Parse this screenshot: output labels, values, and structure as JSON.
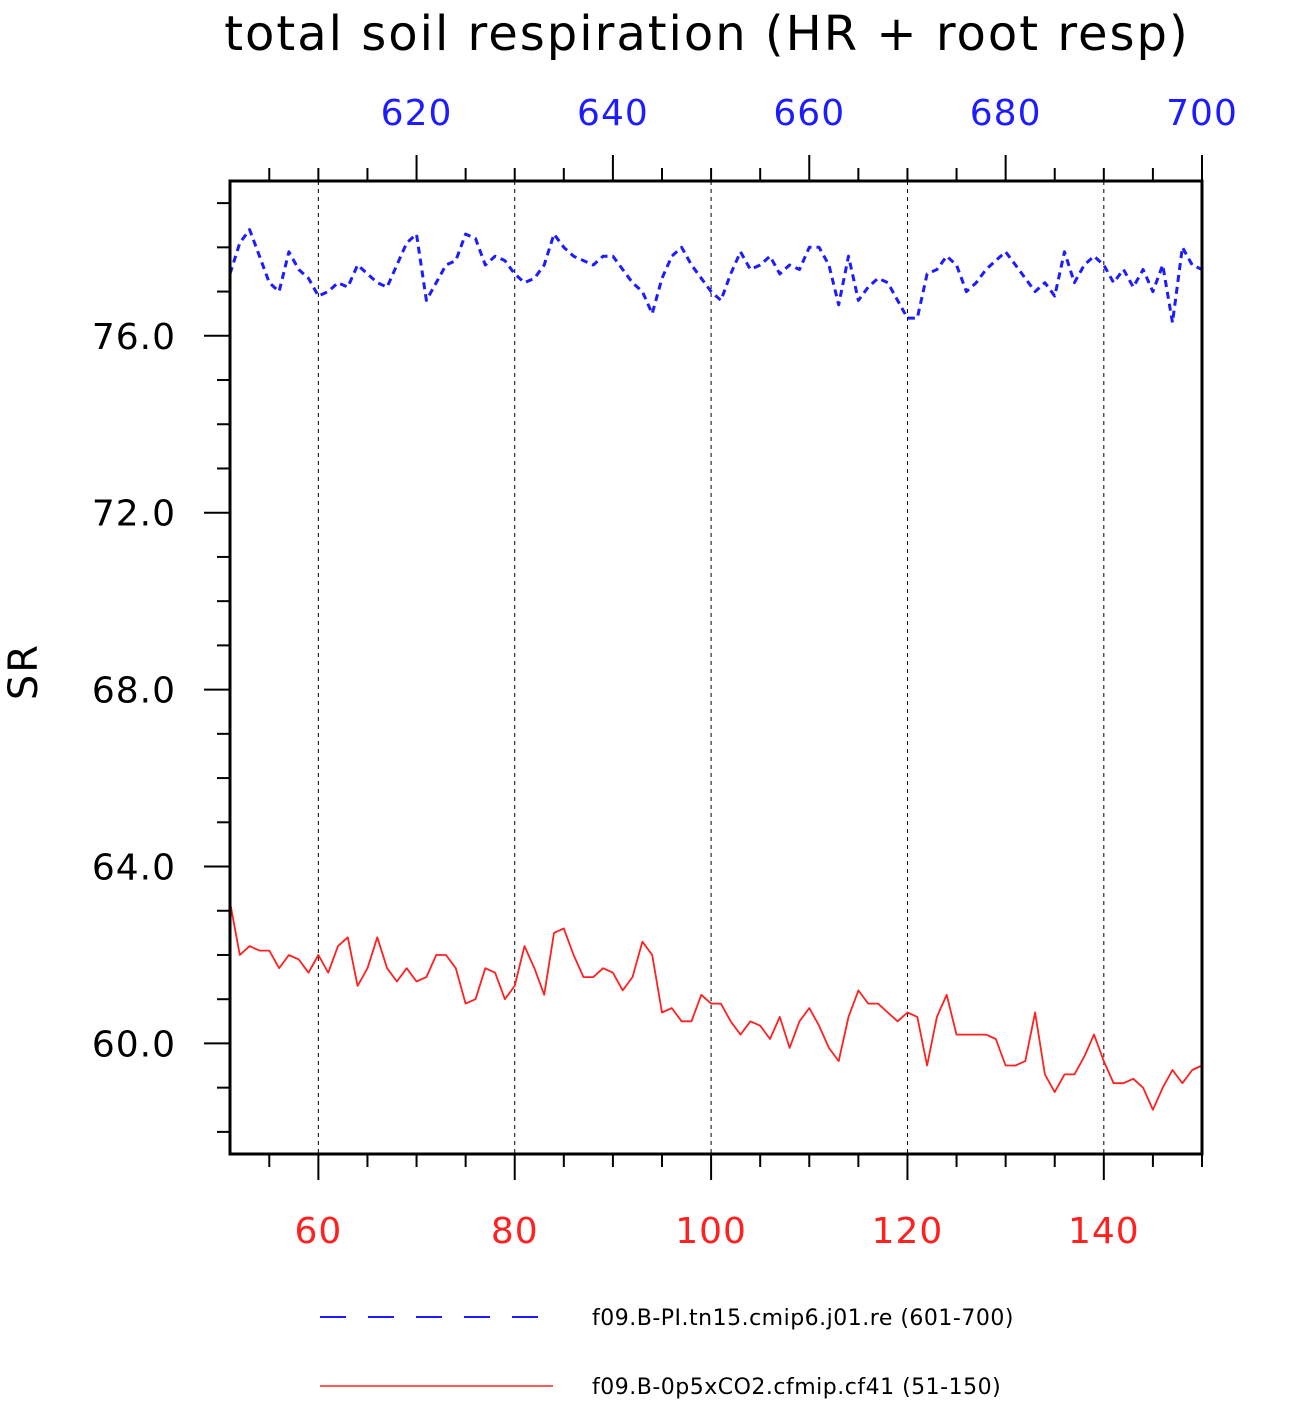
{
  "chart_data": {
    "type": "line",
    "title": "total soil respiration (HR + root resp)",
    "ylabel": "SR",
    "ylim": [
      57.5,
      79.5
    ],
    "y_ticks": [
      60,
      64,
      68,
      72,
      76
    ],
    "y_tick_labels": [
      "60.0",
      "64.0",
      "68.0",
      "72.0",
      "76.0"
    ],
    "grid": "vertical dashed",
    "legend_position": "bottom",
    "x_bottom": {
      "range": [
        51,
        150
      ],
      "ticks": [
        60,
        80,
        100,
        120,
        140
      ],
      "tick_labels": [
        "60",
        "80",
        "100",
        "120",
        "140"
      ],
      "color": "#ff2020"
    },
    "x_top": {
      "range": [
        601,
        700
      ],
      "ticks": [
        620,
        640,
        660,
        680,
        700
      ],
      "tick_labels": [
        "620",
        "640",
        "660",
        "680",
        "700"
      ],
      "color": "#1c1cff"
    },
    "series": [
      {
        "name": "f09.B-PI.tn15.cmip6.j01.re (601-700)",
        "axis": "top",
        "color": "#1c1cff",
        "style": "dashed",
        "x_start": 601,
        "values": [
          77.4,
          78.1,
          78.4,
          77.8,
          77.2,
          77.0,
          77.9,
          77.5,
          77.3,
          76.9,
          77.0,
          77.2,
          77.1,
          77.6,
          77.4,
          77.2,
          77.1,
          77.6,
          78.1,
          78.3,
          76.8,
          77.2,
          77.6,
          77.7,
          78.3,
          78.2,
          77.6,
          77.8,
          77.7,
          77.4,
          77.2,
          77.3,
          77.6,
          78.3,
          78.0,
          77.8,
          77.7,
          77.6,
          77.8,
          77.8,
          77.5,
          77.2,
          77.0,
          76.5,
          77.3,
          77.8,
          78.0,
          77.6,
          77.3,
          77.0,
          76.8,
          77.4,
          77.9,
          77.5,
          77.6,
          77.8,
          77.4,
          77.6,
          77.5,
          78.0,
          78.0,
          77.6,
          76.7,
          77.8,
          76.8,
          77.1,
          77.3,
          77.2,
          76.8,
          76.4,
          76.4,
          77.4,
          77.5,
          77.8,
          77.6,
          77.0,
          77.2,
          77.5,
          77.7,
          77.9,
          77.6,
          77.3,
          77.0,
          77.2,
          76.9,
          77.9,
          77.2,
          77.6,
          77.8,
          77.6,
          77.2,
          77.5,
          77.1,
          77.5,
          77.0,
          77.6,
          76.3,
          78.0,
          77.6,
          77.5
        ]
      },
      {
        "name": "f09.B-0p5xCO2.cfmip.cf41 (51-150)",
        "axis": "bottom",
        "color": "#ff2020",
        "style": "solid",
        "x_start": 51,
        "values": [
          63.2,
          62.0,
          62.2,
          62.1,
          62.1,
          61.7,
          62.0,
          61.9,
          61.6,
          62.0,
          61.6,
          62.2,
          62.4,
          61.3,
          61.7,
          62.4,
          61.7,
          61.4,
          61.7,
          61.4,
          61.5,
          62.0,
          62.0,
          61.7,
          60.9,
          61.0,
          61.7,
          61.6,
          61.0,
          61.3,
          62.2,
          61.7,
          61.1,
          62.5,
          62.6,
          62.0,
          61.5,
          61.5,
          61.7,
          61.6,
          61.2,
          61.5,
          62.3,
          62.0,
          60.7,
          60.8,
          60.5,
          60.5,
          61.1,
          60.9,
          60.9,
          60.5,
          60.2,
          60.5,
          60.4,
          60.1,
          60.6,
          59.9,
          60.5,
          60.8,
          60.4,
          59.9,
          59.6,
          60.6,
          61.2,
          60.9,
          60.9,
          60.7,
          60.5,
          60.7,
          60.6,
          59.5,
          60.6,
          61.1,
          60.2,
          60.2,
          60.2,
          60.2,
          60.1,
          59.5,
          59.5,
          59.6,
          60.7,
          59.3,
          58.9,
          59.3,
          59.3,
          59.7,
          60.2,
          59.6,
          59.1,
          59.1,
          59.2,
          59.0,
          58.5,
          59.0,
          59.4,
          59.1,
          59.4,
          59.5
        ]
      }
    ]
  }
}
